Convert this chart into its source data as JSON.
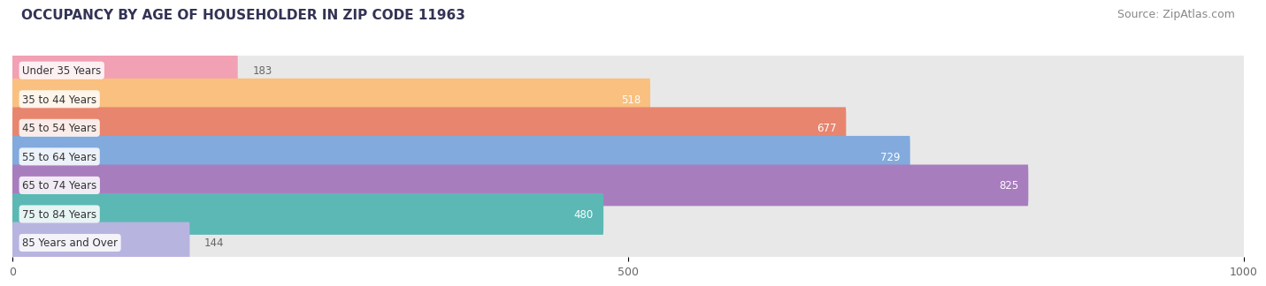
{
  "title": "OCCUPANCY BY AGE OF HOUSEHOLDER IN ZIP CODE 11963",
  "source": "Source: ZipAtlas.com",
  "categories": [
    "Under 35 Years",
    "35 to 44 Years",
    "45 to 54 Years",
    "55 to 64 Years",
    "65 to 74 Years",
    "75 to 84 Years",
    "85 Years and Over"
  ],
  "values": [
    183,
    518,
    677,
    729,
    825,
    480,
    144
  ],
  "bar_colors": [
    "#f2a0b4",
    "#f9c080",
    "#e8856e",
    "#82aadc",
    "#a87dbe",
    "#5cb8b4",
    "#b8b4e0"
  ],
  "bar_bg_color": "#e8e8e8",
  "xlim_data": [
    0,
    1000
  ],
  "xticks": [
    0,
    500,
    1000
  ],
  "title_fontsize": 11,
  "source_fontsize": 9,
  "background_color": "#ffffff",
  "value_label_color_inside": "#ffffff",
  "value_label_color_outside": "#666666",
  "inside_threshold": 350,
  "label_fontsize": 8.5,
  "value_fontsize": 8.5
}
